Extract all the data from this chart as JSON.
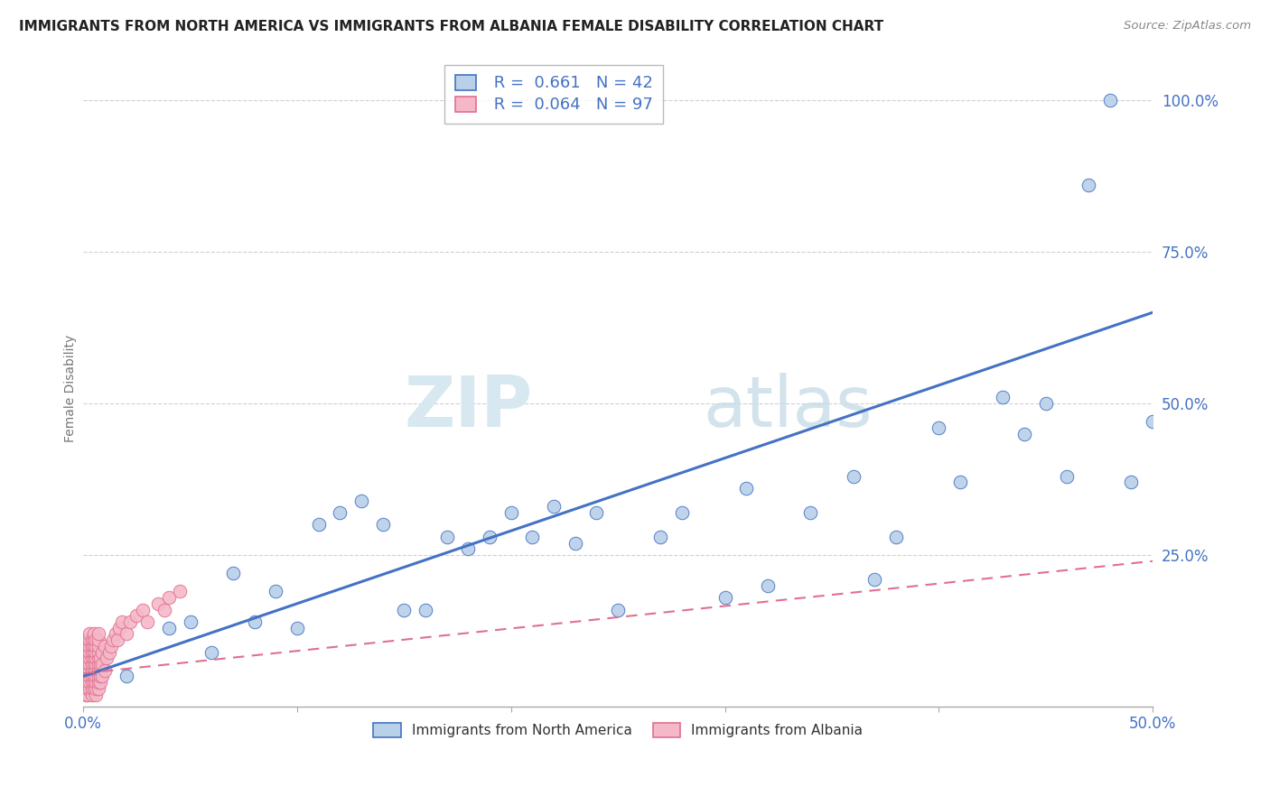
{
  "title": "IMMIGRANTS FROM NORTH AMERICA VS IMMIGRANTS FROM ALBANIA FEMALE DISABILITY CORRELATION CHART",
  "source": "Source: ZipAtlas.com",
  "blue_label": "Immigrants from North America",
  "pink_label": "Immigrants from Albania",
  "blue_R": 0.661,
  "blue_N": 42,
  "pink_R": 0.064,
  "pink_N": 97,
  "blue_color": "#b8d0e8",
  "blue_line_color": "#4472c4",
  "pink_color": "#f4b8c8",
  "pink_line_color": "#e07090",
  "ylabel": "Female Disability",
  "xmin": 0.0,
  "xmax": 0.5,
  "ymin": 0.0,
  "ymax": 1.05,
  "yticks": [
    0.0,
    0.25,
    0.5,
    0.75,
    1.0
  ],
  "ytick_labels": [
    "",
    "25.0%",
    "50.0%",
    "75.0%",
    "100.0%"
  ],
  "xticks": [
    0.0,
    0.1,
    0.2,
    0.3,
    0.4,
    0.5
  ],
  "background_color": "#ffffff",
  "grid_color": "#d0d0d0",
  "blue_trend_x0": 0.0,
  "blue_trend_y0": 0.05,
  "blue_trend_x1": 0.5,
  "blue_trend_y1": 0.65,
  "pink_trend_x0": 0.0,
  "pink_trend_y0": 0.055,
  "pink_trend_x1": 0.5,
  "pink_trend_y1": 0.24,
  "blue_scatter_x": [
    0.02,
    0.04,
    0.05,
    0.06,
    0.07,
    0.08,
    0.09,
    0.1,
    0.11,
    0.12,
    0.13,
    0.14,
    0.15,
    0.16,
    0.17,
    0.18,
    0.19,
    0.2,
    0.21,
    0.22,
    0.23,
    0.24,
    0.25,
    0.27,
    0.28,
    0.3,
    0.31,
    0.32,
    0.34,
    0.36,
    0.37,
    0.38,
    0.4,
    0.41,
    0.43,
    0.44,
    0.45,
    0.46,
    0.47,
    0.48,
    0.49,
    0.5
  ],
  "blue_scatter_y": [
    0.05,
    0.13,
    0.14,
    0.09,
    0.22,
    0.14,
    0.19,
    0.13,
    0.3,
    0.32,
    0.34,
    0.3,
    0.16,
    0.16,
    0.28,
    0.26,
    0.28,
    0.32,
    0.28,
    0.33,
    0.27,
    0.32,
    0.16,
    0.28,
    0.32,
    0.18,
    0.36,
    0.2,
    0.32,
    0.38,
    0.21,
    0.28,
    0.46,
    0.37,
    0.51,
    0.45,
    0.5,
    0.38,
    0.86,
    1.0,
    0.37,
    0.47
  ],
  "pink_scatter_x": [
    0.001,
    0.001,
    0.001,
    0.001,
    0.001,
    0.001,
    0.001,
    0.001,
    0.001,
    0.001,
    0.002,
    0.002,
    0.002,
    0.002,
    0.002,
    0.002,
    0.002,
    0.002,
    0.002,
    0.002,
    0.003,
    0.003,
    0.003,
    0.003,
    0.003,
    0.003,
    0.003,
    0.003,
    0.003,
    0.003,
    0.004,
    0.004,
    0.004,
    0.004,
    0.004,
    0.004,
    0.004,
    0.004,
    0.004,
    0.004,
    0.005,
    0.005,
    0.005,
    0.005,
    0.005,
    0.005,
    0.005,
    0.005,
    0.005,
    0.005,
    0.006,
    0.006,
    0.006,
    0.006,
    0.006,
    0.006,
    0.006,
    0.006,
    0.006,
    0.006,
    0.007,
    0.007,
    0.007,
    0.007,
    0.007,
    0.007,
    0.007,
    0.007,
    0.007,
    0.007,
    0.008,
    0.008,
    0.008,
    0.008,
    0.008,
    0.009,
    0.009,
    0.009,
    0.01,
    0.01,
    0.011,
    0.012,
    0.013,
    0.014,
    0.015,
    0.016,
    0.017,
    0.018,
    0.02,
    0.022,
    0.025,
    0.028,
    0.03,
    0.035,
    0.038,
    0.04,
    0.045
  ],
  "pink_scatter_y": [
    0.02,
    0.03,
    0.04,
    0.05,
    0.06,
    0.07,
    0.08,
    0.09,
    0.1,
    0.11,
    0.02,
    0.03,
    0.04,
    0.05,
    0.06,
    0.07,
    0.08,
    0.09,
    0.1,
    0.11,
    0.03,
    0.04,
    0.05,
    0.06,
    0.07,
    0.08,
    0.09,
    0.1,
    0.11,
    0.12,
    0.02,
    0.03,
    0.04,
    0.05,
    0.06,
    0.07,
    0.08,
    0.09,
    0.1,
    0.11,
    0.03,
    0.04,
    0.05,
    0.06,
    0.07,
    0.08,
    0.09,
    0.1,
    0.11,
    0.12,
    0.02,
    0.03,
    0.04,
    0.05,
    0.06,
    0.07,
    0.08,
    0.09,
    0.1,
    0.11,
    0.03,
    0.04,
    0.05,
    0.06,
    0.07,
    0.08,
    0.09,
    0.1,
    0.11,
    0.12,
    0.04,
    0.05,
    0.06,
    0.07,
    0.08,
    0.05,
    0.07,
    0.09,
    0.06,
    0.1,
    0.08,
    0.09,
    0.1,
    0.11,
    0.12,
    0.11,
    0.13,
    0.14,
    0.12,
    0.14,
    0.15,
    0.16,
    0.14,
    0.17,
    0.16,
    0.18,
    0.19
  ],
  "watermark_zip": "ZIP",
  "watermark_atlas": "atlas"
}
